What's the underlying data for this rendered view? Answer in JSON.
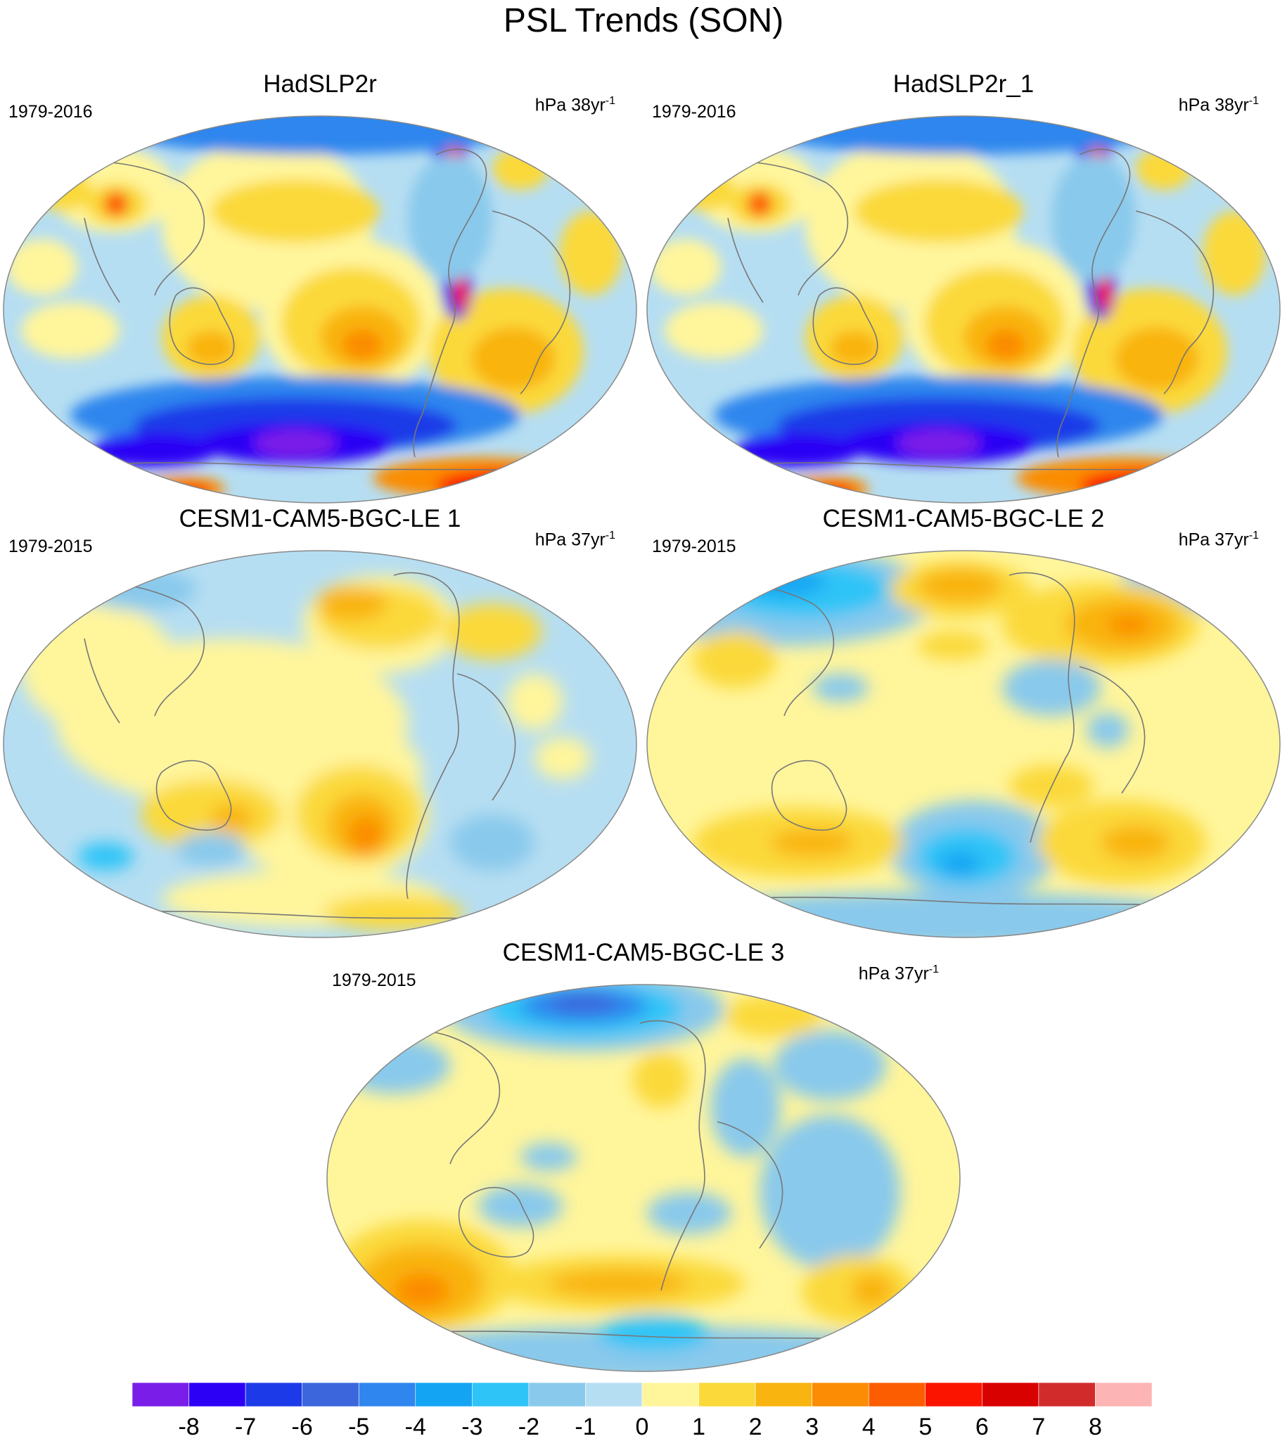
{
  "figure": {
    "title": "PSL Trends (SON)"
  },
  "palette": {
    "ocean_base": "#b6def2",
    "coastline": "#777777",
    "border": "#888888"
  },
  "panels": [
    {
      "id": "p1",
      "title": "HadSLP2r",
      "period": "1979-2016",
      "units_base": "hPa 38yr",
      "units_exp": "-1"
    },
    {
      "id": "p2",
      "title": "HadSLP2r_1",
      "period": "1979-2016",
      "units_base": "hPa 38yr",
      "units_exp": "-1"
    },
    {
      "id": "p3",
      "title": "CESM1-CAM5-BGC-LE 1",
      "period": "1979-2015",
      "units_base": "hPa 37yr",
      "units_exp": "-1"
    },
    {
      "id": "p4",
      "title": "CESM1-CAM5-BGC-LE 2",
      "period": "1979-2015",
      "units_base": "hPa 37yr",
      "units_exp": "-1"
    },
    {
      "id": "p5",
      "title": "CESM1-CAM5-BGC-LE 3",
      "period": "1979-2015",
      "units_base": "hPa 37yr",
      "units_exp": "-1"
    }
  ],
  "colorbar": {
    "labels": [
      "-8",
      "-7",
      "-6",
      "-5",
      "-4",
      "-3",
      "-2",
      "-1",
      "0",
      "1",
      "2",
      "3",
      "4",
      "5",
      "6",
      "7",
      "8"
    ],
    "colors": [
      "#7a1de8",
      "#2b00f5",
      "#1c3ae8",
      "#3b66dc",
      "#2f86ee",
      "#13a5f3",
      "#2ec4f7",
      "#89c9ec",
      "#b6def2",
      "#fff59b",
      "#fbd93b",
      "#f9b40f",
      "#fb8c04",
      "#fc5d00",
      "#fb1400",
      "#d90000",
      "#d22b2b",
      "#fdb4b4"
    ]
  }
}
